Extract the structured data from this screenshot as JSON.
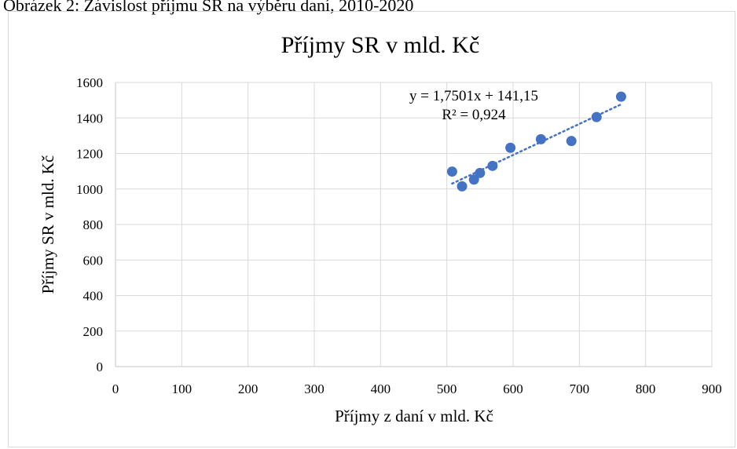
{
  "figure_caption": "Obrázek 2: Závislost příjmu SR na výběru daní, 2010-2020",
  "colors": {
    "marker": "#4472c4",
    "trendline": "#4472c4",
    "gridline": "#d9d9d9",
    "frame": "#d9d9d9"
  },
  "chart_data": {
    "type": "scatter",
    "title": "Příjmy  SR v mld. Kč",
    "xlabel": "Příjmy z daní v mld. Kč",
    "ylabel": "Příjmy SR v mld. Kč",
    "xlim": [
      0,
      900
    ],
    "ylim": [
      0,
      1600
    ],
    "x_ticks": [
      0,
      100,
      200,
      300,
      400,
      500,
      600,
      700,
      800,
      900
    ],
    "y_ticks": [
      0,
      200,
      400,
      600,
      800,
      1000,
      1200,
      1400,
      1600
    ],
    "x_tick_labels": [
      "0",
      "100",
      "200",
      "300",
      "400",
      "500",
      "600",
      "700",
      "800",
      "900"
    ],
    "y_tick_labels": [
      "0",
      "200",
      "400",
      "600",
      "800",
      "1000",
      "1200",
      "1400",
      "1600"
    ],
    "grid": true,
    "legend": "none",
    "points": [
      {
        "x": 508,
        "y": 1098
      },
      {
        "x": 523,
        "y": 1015
      },
      {
        "x": 541,
        "y": 1053
      },
      {
        "x": 550,
        "y": 1090
      },
      {
        "x": 569,
        "y": 1130
      },
      {
        "x": 596,
        "y": 1232
      },
      {
        "x": 642,
        "y": 1280
      },
      {
        "x": 688,
        "y": 1270
      },
      {
        "x": 726,
        "y": 1405
      },
      {
        "x": 763,
        "y": 1520
      }
    ],
    "trendline": {
      "type": "linear",
      "slope": 1.7501,
      "intercept": 141.15,
      "equation_label": "y = 1,7501x + 141,15",
      "r2_label": "R² = 0,924"
    }
  }
}
